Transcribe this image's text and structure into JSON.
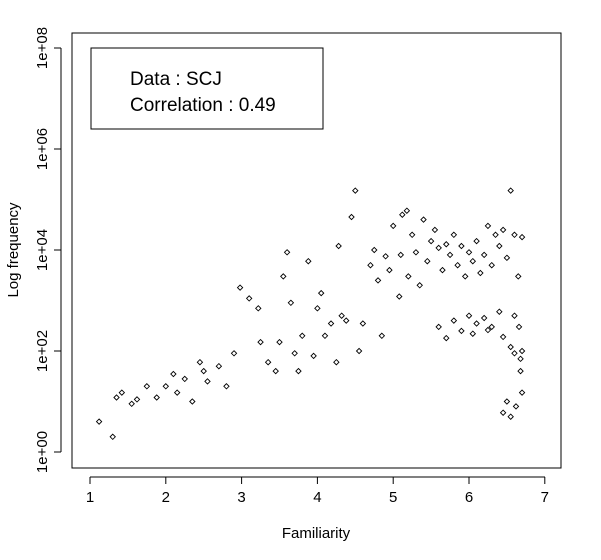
{
  "chart_data": {
    "type": "scatter",
    "title": "",
    "xlabel": "Familiarity",
    "ylabel": "Log frequency",
    "xlim": [
      1,
      7.1
    ],
    "ylim_log10": [
      -0.45,
      8.05
    ],
    "y_scale": "log",
    "grid": false,
    "marker": "open-diamond",
    "x_ticks": [
      {
        "value": 1,
        "label": "1"
      },
      {
        "value": 2,
        "label": "2"
      },
      {
        "value": 3,
        "label": "3"
      },
      {
        "value": 4,
        "label": "4"
      },
      {
        "value": 5,
        "label": "5"
      },
      {
        "value": 6,
        "label": "6"
      },
      {
        "value": 7,
        "label": "7"
      }
    ],
    "y_ticks": [
      {
        "value": 1,
        "label": "1e+00"
      },
      {
        "value": 100,
        "label": "1e+02"
      },
      {
        "value": 10000,
        "label": "1e+04"
      },
      {
        "value": 1000000,
        "label": "1e+06"
      },
      {
        "value": 100000000,
        "label": "1e+08"
      }
    ],
    "legend": {
      "placement": "top-left",
      "lines": [
        "Data : SCJ",
        "Correlation : 0.49"
      ]
    },
    "points": [
      [
        1.12,
        4
      ],
      [
        1.3,
        2
      ],
      [
        1.35,
        12
      ],
      [
        1.42,
        15
      ],
      [
        1.55,
        9
      ],
      [
        1.62,
        11
      ],
      [
        1.75,
        20
      ],
      [
        1.88,
        12
      ],
      [
        2.0,
        20
      ],
      [
        2.1,
        35
      ],
      [
        2.15,
        15
      ],
      [
        2.25,
        28
      ],
      [
        2.35,
        10
      ],
      [
        2.45,
        60
      ],
      [
        2.5,
        40
      ],
      [
        2.55,
        25
      ],
      [
        2.7,
        50
      ],
      [
        2.8,
        20
      ],
      [
        2.9,
        90
      ],
      [
        2.98,
        1800
      ],
      [
        3.1,
        1100
      ],
      [
        3.22,
        700
      ],
      [
        3.25,
        150
      ],
      [
        3.35,
        60
      ],
      [
        3.45,
        40
      ],
      [
        3.5,
        150
      ],
      [
        3.55,
        3000
      ],
      [
        3.6,
        9000
      ],
      [
        3.65,
        900
      ],
      [
        3.7,
        90
      ],
      [
        3.75,
        40
      ],
      [
        3.8,
        200
      ],
      [
        3.88,
        6000
      ],
      [
        3.95,
        80
      ],
      [
        4.0,
        700
      ],
      [
        4.05,
        1400
      ],
      [
        4.1,
        200
      ],
      [
        4.18,
        350
      ],
      [
        4.25,
        60
      ],
      [
        4.28,
        12000
      ],
      [
        4.32,
        500
      ],
      [
        4.38,
        400
      ],
      [
        4.45,
        45000
      ],
      [
        4.5,
        150000
      ],
      [
        4.55,
        100
      ],
      [
        4.6,
        350
      ],
      [
        4.7,
        5000
      ],
      [
        4.75,
        10000
      ],
      [
        4.8,
        2500
      ],
      [
        4.85,
        200
      ],
      [
        4.9,
        7500
      ],
      [
        4.95,
        4000
      ],
      [
        5.0,
        30000
      ],
      [
        5.08,
        1200
      ],
      [
        5.1,
        8000
      ],
      [
        5.12,
        50000
      ],
      [
        5.18,
        60000
      ],
      [
        5.2,
        3000
      ],
      [
        5.25,
        20000
      ],
      [
        5.3,
        9000
      ],
      [
        5.35,
        2000
      ],
      [
        5.4,
        40000
      ],
      [
        5.45,
        6000
      ],
      [
        5.5,
        15000
      ],
      [
        5.55,
        25000
      ],
      [
        5.6,
        11000
      ],
      [
        5.65,
        4000
      ],
      [
        5.7,
        13000
      ],
      [
        5.75,
        8000
      ],
      [
        5.8,
        20000
      ],
      [
        5.85,
        5000
      ],
      [
        5.9,
        12000
      ],
      [
        5.95,
        3000
      ],
      [
        6.0,
        9000
      ],
      [
        6.05,
        6000
      ],
      [
        6.1,
        15000
      ],
      [
        6.15,
        3500
      ],
      [
        6.2,
        8000
      ],
      [
        6.25,
        30000
      ],
      [
        6.3,
        5000
      ],
      [
        6.35,
        20000
      ],
      [
        6.4,
        12000
      ],
      [
        6.45,
        25000
      ],
      [
        6.5,
        7000
      ],
      [
        6.55,
        150000
      ],
      [
        6.6,
        20000
      ],
      [
        6.65,
        3000
      ],
      [
        6.7,
        18000
      ],
      [
        5.6,
        300
      ],
      [
        5.8,
        400
      ],
      [
        6.0,
        500
      ],
      [
        6.2,
        450
      ],
      [
        6.4,
        600
      ],
      [
        5.9,
        250
      ],
      [
        6.1,
        350
      ],
      [
        6.3,
        300
      ],
      [
        5.7,
        180
      ],
      [
        6.05,
        220
      ],
      [
        6.25,
        260
      ],
      [
        6.45,
        190
      ],
      [
        6.55,
        120
      ],
      [
        6.6,
        90
      ],
      [
        6.68,
        40
      ],
      [
        6.7,
        15
      ],
      [
        6.62,
        8
      ],
      [
        6.55,
        5
      ],
      [
        6.5,
        10
      ],
      [
        6.45,
        6
      ],
      [
        6.7,
        100
      ],
      [
        6.68,
        70
      ],
      [
        6.66,
        300
      ],
      [
        6.6,
        500
      ]
    ]
  }
}
